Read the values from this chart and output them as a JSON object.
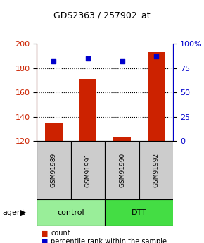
{
  "title": "GDS2363 / 257902_at",
  "samples": [
    "GSM91989",
    "GSM91991",
    "GSM91990",
    "GSM91992"
  ],
  "counts": [
    135,
    171,
    123,
    193
  ],
  "percentiles": [
    82,
    85,
    82,
    87
  ],
  "ylim_left": [
    120,
    200
  ],
  "ylim_right": [
    0,
    100
  ],
  "yticks_left": [
    120,
    140,
    160,
    180,
    200
  ],
  "yticks_right": [
    0,
    25,
    50,
    75,
    100
  ],
  "ytick_labels_right": [
    "0",
    "25",
    "50",
    "75",
    "100%"
  ],
  "bar_color": "#cc2200",
  "dot_color": "#0000cc",
  "groups": [
    {
      "label": "control",
      "samples": [
        0,
        1
      ],
      "color": "#99ee99"
    },
    {
      "label": "DTT",
      "samples": [
        2,
        3
      ],
      "color": "#44dd44"
    }
  ],
  "agent_label": "agent",
  "sample_box_color": "#cccccc",
  "legend_count_color": "#cc2200",
  "legend_pct_color": "#0000cc",
  "grid_color": "#000000",
  "background_color": "#ffffff"
}
